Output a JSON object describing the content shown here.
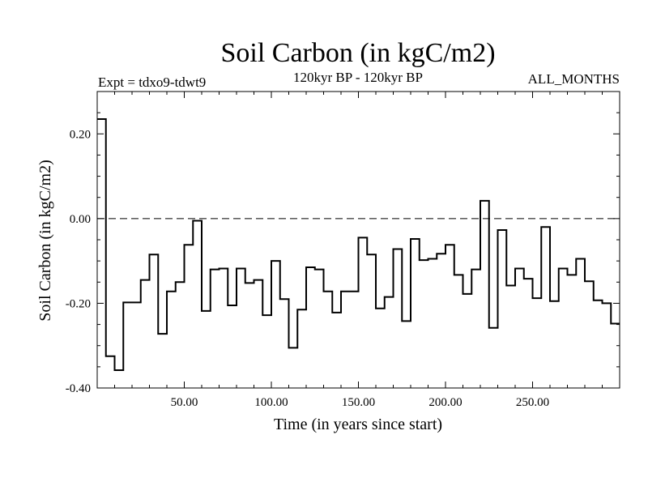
{
  "chart_data": {
    "type": "line",
    "title": "Soil Carbon (in kgC/m2)",
    "subtitle": "120kyr BP - 120kyr BP",
    "experiment_label": "Expt = tdxo9-tdwt9",
    "period_label": "ALL_MONTHS",
    "xlabel": "Time (in years since start)",
    "ylabel": "Soil Carbon (in kgC/m2)",
    "xlim": [
      0,
      300
    ],
    "ylim": [
      -0.4,
      0.3
    ],
    "x_ticks": [
      50,
      100,
      150,
      200,
      250
    ],
    "x_tick_labels": [
      "50.00",
      "100.00",
      "150.00",
      "200.00",
      "250.00"
    ],
    "y_ticks": [
      -0.4,
      -0.2,
      0.0,
      0.2
    ],
    "y_tick_labels": [
      "-0.40",
      "-0.20",
      "0.00",
      "0.20"
    ],
    "reference_line": {
      "y": 0.0,
      "style": "dashed"
    },
    "step_width": 5,
    "grid": false,
    "series": [
      {
        "x_start": 0,
        "values": [
          0.235,
          -0.325,
          -0.358,
          -0.198,
          -0.198,
          -0.145,
          -0.085,
          -0.272,
          -0.172,
          -0.15,
          -0.062,
          -0.005,
          -0.218,
          -0.12,
          -0.118,
          -0.205,
          -0.118,
          -0.152,
          -0.145,
          -0.228,
          -0.1,
          -0.19,
          -0.305,
          -0.215,
          -0.115,
          -0.12,
          -0.172,
          -0.222,
          -0.172,
          -0.172,
          -0.045,
          -0.085,
          -0.212,
          -0.185,
          -0.072,
          -0.242,
          -0.048,
          -0.098,
          -0.095,
          -0.083,
          -0.062,
          -0.133,
          -0.178,
          -0.12,
          0.042,
          -0.258,
          -0.027,
          -0.158,
          -0.118,
          -0.142,
          -0.188,
          -0.02,
          -0.195,
          -0.118,
          -0.133,
          -0.095,
          -0.148,
          -0.193,
          -0.2,
          -0.248
        ]
      }
    ]
  }
}
